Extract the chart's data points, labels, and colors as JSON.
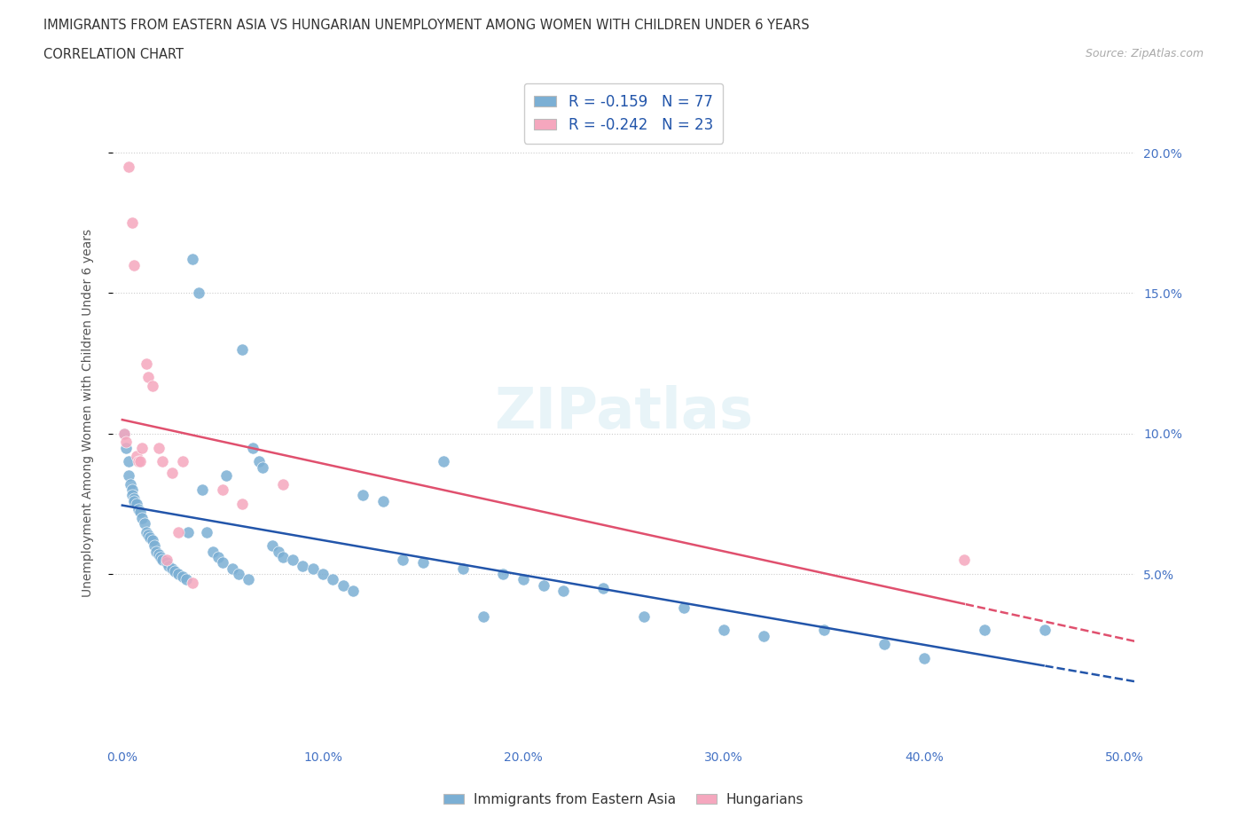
{
  "title_line1": "IMMIGRANTS FROM EASTERN ASIA VS HUNGARIAN UNEMPLOYMENT AMONG WOMEN WITH CHILDREN UNDER 6 YEARS",
  "title_line2": "CORRELATION CHART",
  "source_text": "Source: ZipAtlas.com",
  "ylabel": "Unemployment Among Women with Children Under 6 years",
  "xlim": [
    -0.005,
    0.505
  ],
  "ylim": [
    -0.01,
    0.225
  ],
  "ytick_vals": [
    0.05,
    0.1,
    0.15,
    0.2
  ],
  "ytick_labels": [
    "5.0%",
    "10.0%",
    "15.0%",
    "20.0%"
  ],
  "xtick_vals": [
    0.0,
    0.1,
    0.2,
    0.3,
    0.4,
    0.5
  ],
  "xtick_labels": [
    "0.0%",
    "10.0%",
    "20.0%",
    "30.0%",
    "40.0%",
    "50.0%"
  ],
  "blue_color": "#7bafd4",
  "pink_color": "#f5a7be",
  "blue_line_color": "#2255aa",
  "pink_line_color": "#e0506e",
  "tick_color": "#4472c4",
  "R_blue": -0.159,
  "N_blue": 77,
  "R_pink": -0.242,
  "N_pink": 23,
  "legend1_label": "Immigrants from Eastern Asia",
  "legend2_label": "Hungarians",
  "blue_x": [
    0.001,
    0.002,
    0.003,
    0.003,
    0.004,
    0.005,
    0.005,
    0.006,
    0.006,
    0.007,
    0.008,
    0.009,
    0.01,
    0.011,
    0.012,
    0.013,
    0.014,
    0.015,
    0.016,
    0.017,
    0.018,
    0.019,
    0.02,
    0.022,
    0.023,
    0.025,
    0.026,
    0.028,
    0.03,
    0.032,
    0.033,
    0.035,
    0.038,
    0.04,
    0.042,
    0.045,
    0.048,
    0.05,
    0.052,
    0.055,
    0.058,
    0.06,
    0.063,
    0.065,
    0.068,
    0.07,
    0.075,
    0.078,
    0.08,
    0.085,
    0.09,
    0.095,
    0.1,
    0.105,
    0.11,
    0.115,
    0.12,
    0.13,
    0.14,
    0.15,
    0.16,
    0.17,
    0.18,
    0.19,
    0.2,
    0.21,
    0.22,
    0.24,
    0.26,
    0.28,
    0.3,
    0.32,
    0.35,
    0.38,
    0.4,
    0.43,
    0.46
  ],
  "blue_y": [
    0.1,
    0.095,
    0.09,
    0.085,
    0.082,
    0.08,
    0.078,
    0.077,
    0.076,
    0.075,
    0.073,
    0.072,
    0.07,
    0.068,
    0.065,
    0.064,
    0.063,
    0.062,
    0.06,
    0.058,
    0.057,
    0.056,
    0.055,
    0.054,
    0.053,
    0.052,
    0.051,
    0.05,
    0.049,
    0.048,
    0.065,
    0.162,
    0.15,
    0.08,
    0.065,
    0.058,
    0.056,
    0.054,
    0.085,
    0.052,
    0.05,
    0.13,
    0.048,
    0.095,
    0.09,
    0.088,
    0.06,
    0.058,
    0.056,
    0.055,
    0.053,
    0.052,
    0.05,
    0.048,
    0.046,
    0.044,
    0.078,
    0.076,
    0.055,
    0.054,
    0.09,
    0.052,
    0.035,
    0.05,
    0.048,
    0.046,
    0.044,
    0.045,
    0.035,
    0.038,
    0.03,
    0.028,
    0.03,
    0.025,
    0.02,
    0.03,
    0.03
  ],
  "pink_x": [
    0.001,
    0.002,
    0.003,
    0.005,
    0.006,
    0.007,
    0.008,
    0.009,
    0.01,
    0.012,
    0.013,
    0.015,
    0.018,
    0.02,
    0.022,
    0.025,
    0.028,
    0.03,
    0.035,
    0.05,
    0.06,
    0.08,
    0.42
  ],
  "pink_y": [
    0.1,
    0.097,
    0.195,
    0.175,
    0.16,
    0.092,
    0.09,
    0.09,
    0.095,
    0.125,
    0.12,
    0.117,
    0.095,
    0.09,
    0.055,
    0.086,
    0.065,
    0.09,
    0.047,
    0.08,
    0.075,
    0.082,
    0.055
  ]
}
